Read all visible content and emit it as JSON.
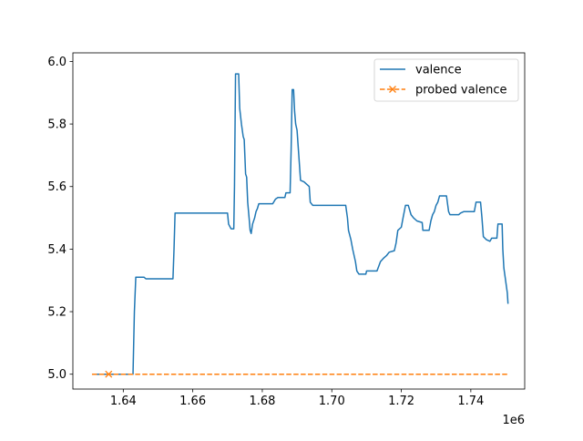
{
  "chart_data": {
    "type": "line",
    "title": "",
    "xlabel": "",
    "ylabel": "",
    "x_offset_label": "1e6",
    "xlim": [
      1.6255,
      1.7555
    ],
    "ylim": [
      4.9525,
      6.0275
    ],
    "xticks": [
      1.64,
      1.66,
      1.68,
      1.7,
      1.72,
      1.74
    ],
    "xtick_labels": [
      "1.64",
      "1.66",
      "1.68",
      "1.70",
      "1.72",
      "1.74"
    ],
    "yticks": [
      5.0,
      5.2,
      5.4,
      5.6,
      5.8,
      6.0
    ],
    "ytick_labels": [
      "5.0",
      "5.2",
      "5.4",
      "5.6",
      "5.8",
      "6.0"
    ],
    "grid": false,
    "legend_position": "top-right",
    "series": [
      {
        "name": "valence",
        "color": "#1f77b4",
        "style": "solid",
        "marker": "none",
        "points": [
          [
            1.631,
            5.0
          ],
          [
            1.6428,
            5.0
          ],
          [
            1.6432,
            5.2
          ],
          [
            1.6436,
            5.31
          ],
          [
            1.646,
            5.31
          ],
          [
            1.6465,
            5.305
          ],
          [
            1.6543,
            5.305
          ],
          [
            1.6546,
            5.4
          ],
          [
            1.6549,
            5.515
          ],
          [
            1.67,
            5.515
          ],
          [
            1.6703,
            5.48
          ],
          [
            1.671,
            5.465
          ],
          [
            1.6718,
            5.465
          ],
          [
            1.672,
            5.6
          ],
          [
            1.6723,
            5.96
          ],
          [
            1.6732,
            5.96
          ],
          [
            1.6735,
            5.85
          ],
          [
            1.674,
            5.8
          ],
          [
            1.6745,
            5.76
          ],
          [
            1.6748,
            5.75
          ],
          [
            1.6752,
            5.64
          ],
          [
            1.6755,
            5.63
          ],
          [
            1.6758,
            5.55
          ],
          [
            1.6762,
            5.5
          ],
          [
            1.6765,
            5.46
          ],
          [
            1.6768,
            5.45
          ],
          [
            1.6772,
            5.48
          ],
          [
            1.6778,
            5.5
          ],
          [
            1.6782,
            5.52
          ],
          [
            1.6786,
            5.53
          ],
          [
            1.679,
            5.545
          ],
          [
            1.683,
            5.545
          ],
          [
            1.6838,
            5.56
          ],
          [
            1.6845,
            5.565
          ],
          [
            1.6865,
            5.565
          ],
          [
            1.6868,
            5.58
          ],
          [
            1.688,
            5.58
          ],
          [
            1.6883,
            5.72
          ],
          [
            1.6886,
            5.91
          ],
          [
            1.689,
            5.91
          ],
          [
            1.6893,
            5.84
          ],
          [
            1.6896,
            5.8
          ],
          [
            1.69,
            5.78
          ],
          [
            1.6905,
            5.7
          ],
          [
            1.691,
            5.62
          ],
          [
            1.692,
            5.615
          ],
          [
            1.6935,
            5.6
          ],
          [
            1.6938,
            5.55
          ],
          [
            1.6945,
            5.54
          ],
          [
            1.704,
            5.54
          ],
          [
            1.7045,
            5.5
          ],
          [
            1.7048,
            5.46
          ],
          [
            1.7055,
            5.43
          ],
          [
            1.706,
            5.4
          ],
          [
            1.7068,
            5.36
          ],
          [
            1.7072,
            5.33
          ],
          [
            1.7078,
            5.32
          ],
          [
            1.7098,
            5.32
          ],
          [
            1.71,
            5.33
          ],
          [
            1.713,
            5.33
          ],
          [
            1.7135,
            5.345
          ],
          [
            1.714,
            5.36
          ],
          [
            1.7148,
            5.37
          ],
          [
            1.7158,
            5.38
          ],
          [
            1.7165,
            5.39
          ],
          [
            1.718,
            5.395
          ],
          [
            1.7185,
            5.42
          ],
          [
            1.719,
            5.46
          ],
          [
            1.72,
            5.47
          ],
          [
            1.7205,
            5.5
          ],
          [
            1.7212,
            5.54
          ],
          [
            1.722,
            5.54
          ],
          [
            1.7228,
            5.51
          ],
          [
            1.7235,
            5.5
          ],
          [
            1.7245,
            5.49
          ],
          [
            1.726,
            5.485
          ],
          [
            1.7262,
            5.46
          ],
          [
            1.728,
            5.46
          ],
          [
            1.7285,
            5.49
          ],
          [
            1.729,
            5.51
          ],
          [
            1.7295,
            5.52
          ],
          [
            1.73,
            5.54
          ],
          [
            1.7305,
            5.55
          ],
          [
            1.731,
            5.57
          ],
          [
            1.733,
            5.57
          ],
          [
            1.7336,
            5.52
          ],
          [
            1.734,
            5.51
          ],
          [
            1.7365,
            5.51
          ],
          [
            1.737,
            5.515
          ],
          [
            1.738,
            5.52
          ],
          [
            1.741,
            5.52
          ],
          [
            1.7415,
            5.55
          ],
          [
            1.7428,
            5.55
          ],
          [
            1.7432,
            5.5
          ],
          [
            1.7436,
            5.44
          ],
          [
            1.7445,
            5.43
          ],
          [
            1.7455,
            5.425
          ],
          [
            1.746,
            5.435
          ],
          [
            1.7475,
            5.435
          ],
          [
            1.7478,
            5.48
          ],
          [
            1.749,
            5.48
          ],
          [
            1.7492,
            5.4
          ],
          [
            1.7495,
            5.34
          ],
          [
            1.75,
            5.3
          ],
          [
            1.7505,
            5.26
          ],
          [
            1.7507,
            5.225
          ]
        ]
      },
      {
        "name": "probed valence",
        "color": "#ff7f0e",
        "style": "dashed",
        "marker": "x",
        "marker_points": [
          [
            1.6358,
            5.0
          ]
        ],
        "points": [
          [
            1.631,
            5.0
          ],
          [
            1.7507,
            5.0
          ]
        ]
      }
    ]
  }
}
